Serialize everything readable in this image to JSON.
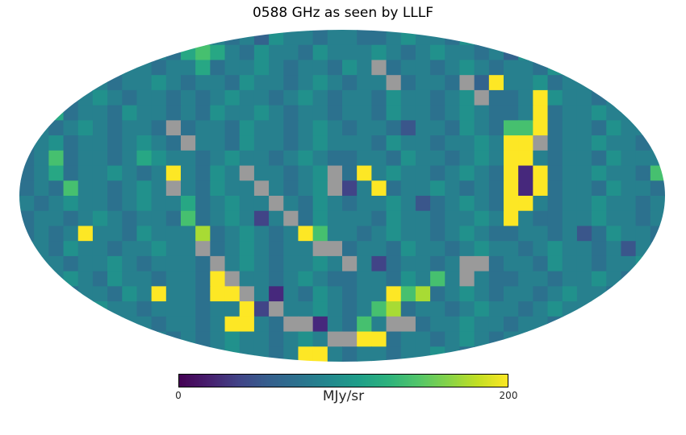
{
  "title": "0588 GHz as seen by LLLF",
  "colorbar": {
    "label": "MJy/sr",
    "tick_min": "0",
    "tick_max": "200",
    "stops": [
      "#440154",
      "#471f6e",
      "#414487",
      "#355f8d",
      "#2c728e",
      "#23888e",
      "#1f9e89",
      "#2db27d",
      "#51c56a",
      "#85d349",
      "#c2df23",
      "#fde725"
    ]
  },
  "chart_data": {
    "type": "heatmap",
    "projection": "mollweide",
    "title": "0588 GHz as seen by LLLF",
    "value_label": "MJy/sr",
    "value_range": [
      0,
      200
    ],
    "colorbar_ticks": [
      0,
      200
    ],
    "colormap": "viridis",
    "missing_data_color_key": "U",
    "grid_cols": 44,
    "grid_rows": 22,
    "palette": {
      "P": "#46287c",
      "0": "#414487",
      "1": "#3a568b",
      "2": "#33638d",
      "3": "#2c718e",
      "4": "#27808e",
      "5": "#21918c",
      "6": "#27a784",
      "7": "#46c06f",
      "8": "#a8db34",
      "9": "#fde725",
      "U": "#9a9a9a"
    },
    "palette_values_mjy_sr": {
      "P": 12,
      "0": 28,
      "1": 45,
      "2": 60,
      "3": 75,
      "4": 92,
      "5": 108,
      "6": 128,
      "7": 152,
      "8": 178,
      "9": 200,
      "U": null
    },
    "grid": [
      "43444534434544342544344334544354334434454334",
      "45434434543676435443544454345443425434434544",
      "344543544344634454344354U344345434435445 4343",
      "4354443445434435443454344U3443U2944534434354",
      "34434543443434544345434435443 45U334954434434",
      "34634435443435445434434435443454334934454434",
      "4434543443U344354434543443144354377934435443",
      "34534434543U443544345444354434454 99U34454434",
      "34734434654434544345433443544345499434435444",
      "346344543494354U44345U394544345439P934454437",
      "3437443454U43544U4345U049344543439P934435443",
      "43454434544634544U43543445413454399434454434",
      "344345434437345404U35444354434454943344 54434",
      "34349443544483454349744345443454334434135443",
      "443544344544U3454344UU3443544345443454434143",
      "3443445434443U45434454U4034434UU344354434454",
      "43454354434439U443454334435474U4334434454344",
      "344344354944399U4P435434497834543443454434 54",
      "44343544344434490U445434783443454434 54434543",
      "344344544344349943UUP4374UU3445443443 5443454",
      "434544345434345443454UU993443454344354434454",
      "34434543443434544349943443445434443454434543"
    ]
  }
}
